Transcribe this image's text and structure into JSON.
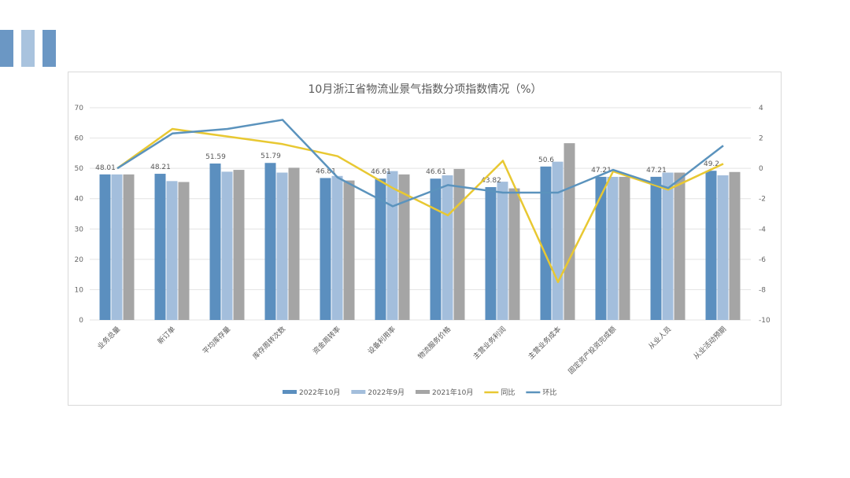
{
  "colors": {
    "s1": "#5b8fbf",
    "s2": "#a3bedc",
    "s3": "#a5a5a5",
    "yoy": "#e8c832",
    "mom": "#5b93bd",
    "deco": [
      "#6b97c4",
      "#a9c3de",
      "#6b97c4"
    ]
  },
  "chart_data": {
    "type": "bar",
    "title": "10月浙江省物流业景气指数分项指数情况（%）",
    "categories": [
      "业务总量",
      "新订单",
      "平均库存量",
      "库存周转次数",
      "资金周转率",
      "设备利用率",
      "物流服务价格",
      "主营业务利润",
      "主营业务成本",
      "固定资产投资完成额",
      "从业人员",
      "从业活动预期"
    ],
    "y_left": {
      "range": [
        0,
        70
      ],
      "ticks": [
        "0",
        "10",
        "20",
        "30",
        "40",
        "50",
        "60",
        "70"
      ]
    },
    "y_right": {
      "range": [
        -10,
        4
      ],
      "ticks": [
        "-10",
        "-8",
        "-6",
        "-4",
        "-2",
        "0",
        "2",
        "4"
      ]
    },
    "grid": true,
    "legend_position": "bottom",
    "series": [
      {
        "name": "2022年10月",
        "type": "bar",
        "axis": "left",
        "values": [
          48.01,
          48.21,
          51.59,
          51.79,
          46.81,
          46.61,
          46.61,
          43.82,
          50.6,
          47.21,
          47.21,
          49.2
        ]
      },
      {
        "name": "2022年9月",
        "type": "bar",
        "axis": "left",
        "values": [
          48.0,
          45.8,
          48.9,
          48.6,
          47.5,
          49.1,
          47.7,
          45.6,
          52.2,
          47.2,
          48.6,
          47.7
        ]
      },
      {
        "name": "2021年10月",
        "type": "bar",
        "axis": "left",
        "values": [
          48.0,
          45.5,
          49.5,
          50.2,
          46.0,
          48.0,
          49.8,
          43.4,
          58.3,
          47.2,
          48.6,
          48.8
        ]
      },
      {
        "name": "同比",
        "type": "line",
        "axis": "right",
        "values": [
          0,
          2.6,
          2.1,
          1.6,
          0.8,
          -1.3,
          -3.1,
          0.5,
          -7.5,
          -0.2,
          -1.4,
          0.3
        ]
      },
      {
        "name": "环比",
        "type": "line",
        "axis": "right",
        "values": [
          0,
          2.3,
          2.6,
          3.2,
          -0.6,
          -2.5,
          -1.1,
          -1.6,
          -1.6,
          -0.1,
          -1.3,
          1.5
        ]
      }
    ],
    "data_labels": [
      "48.01",
      "48.21",
      "51.59",
      "51.79",
      "46.81",
      "46.61",
      "46.61",
      "43.82",
      "50.6",
      "47.21",
      "47.21",
      "49.2"
    ]
  }
}
